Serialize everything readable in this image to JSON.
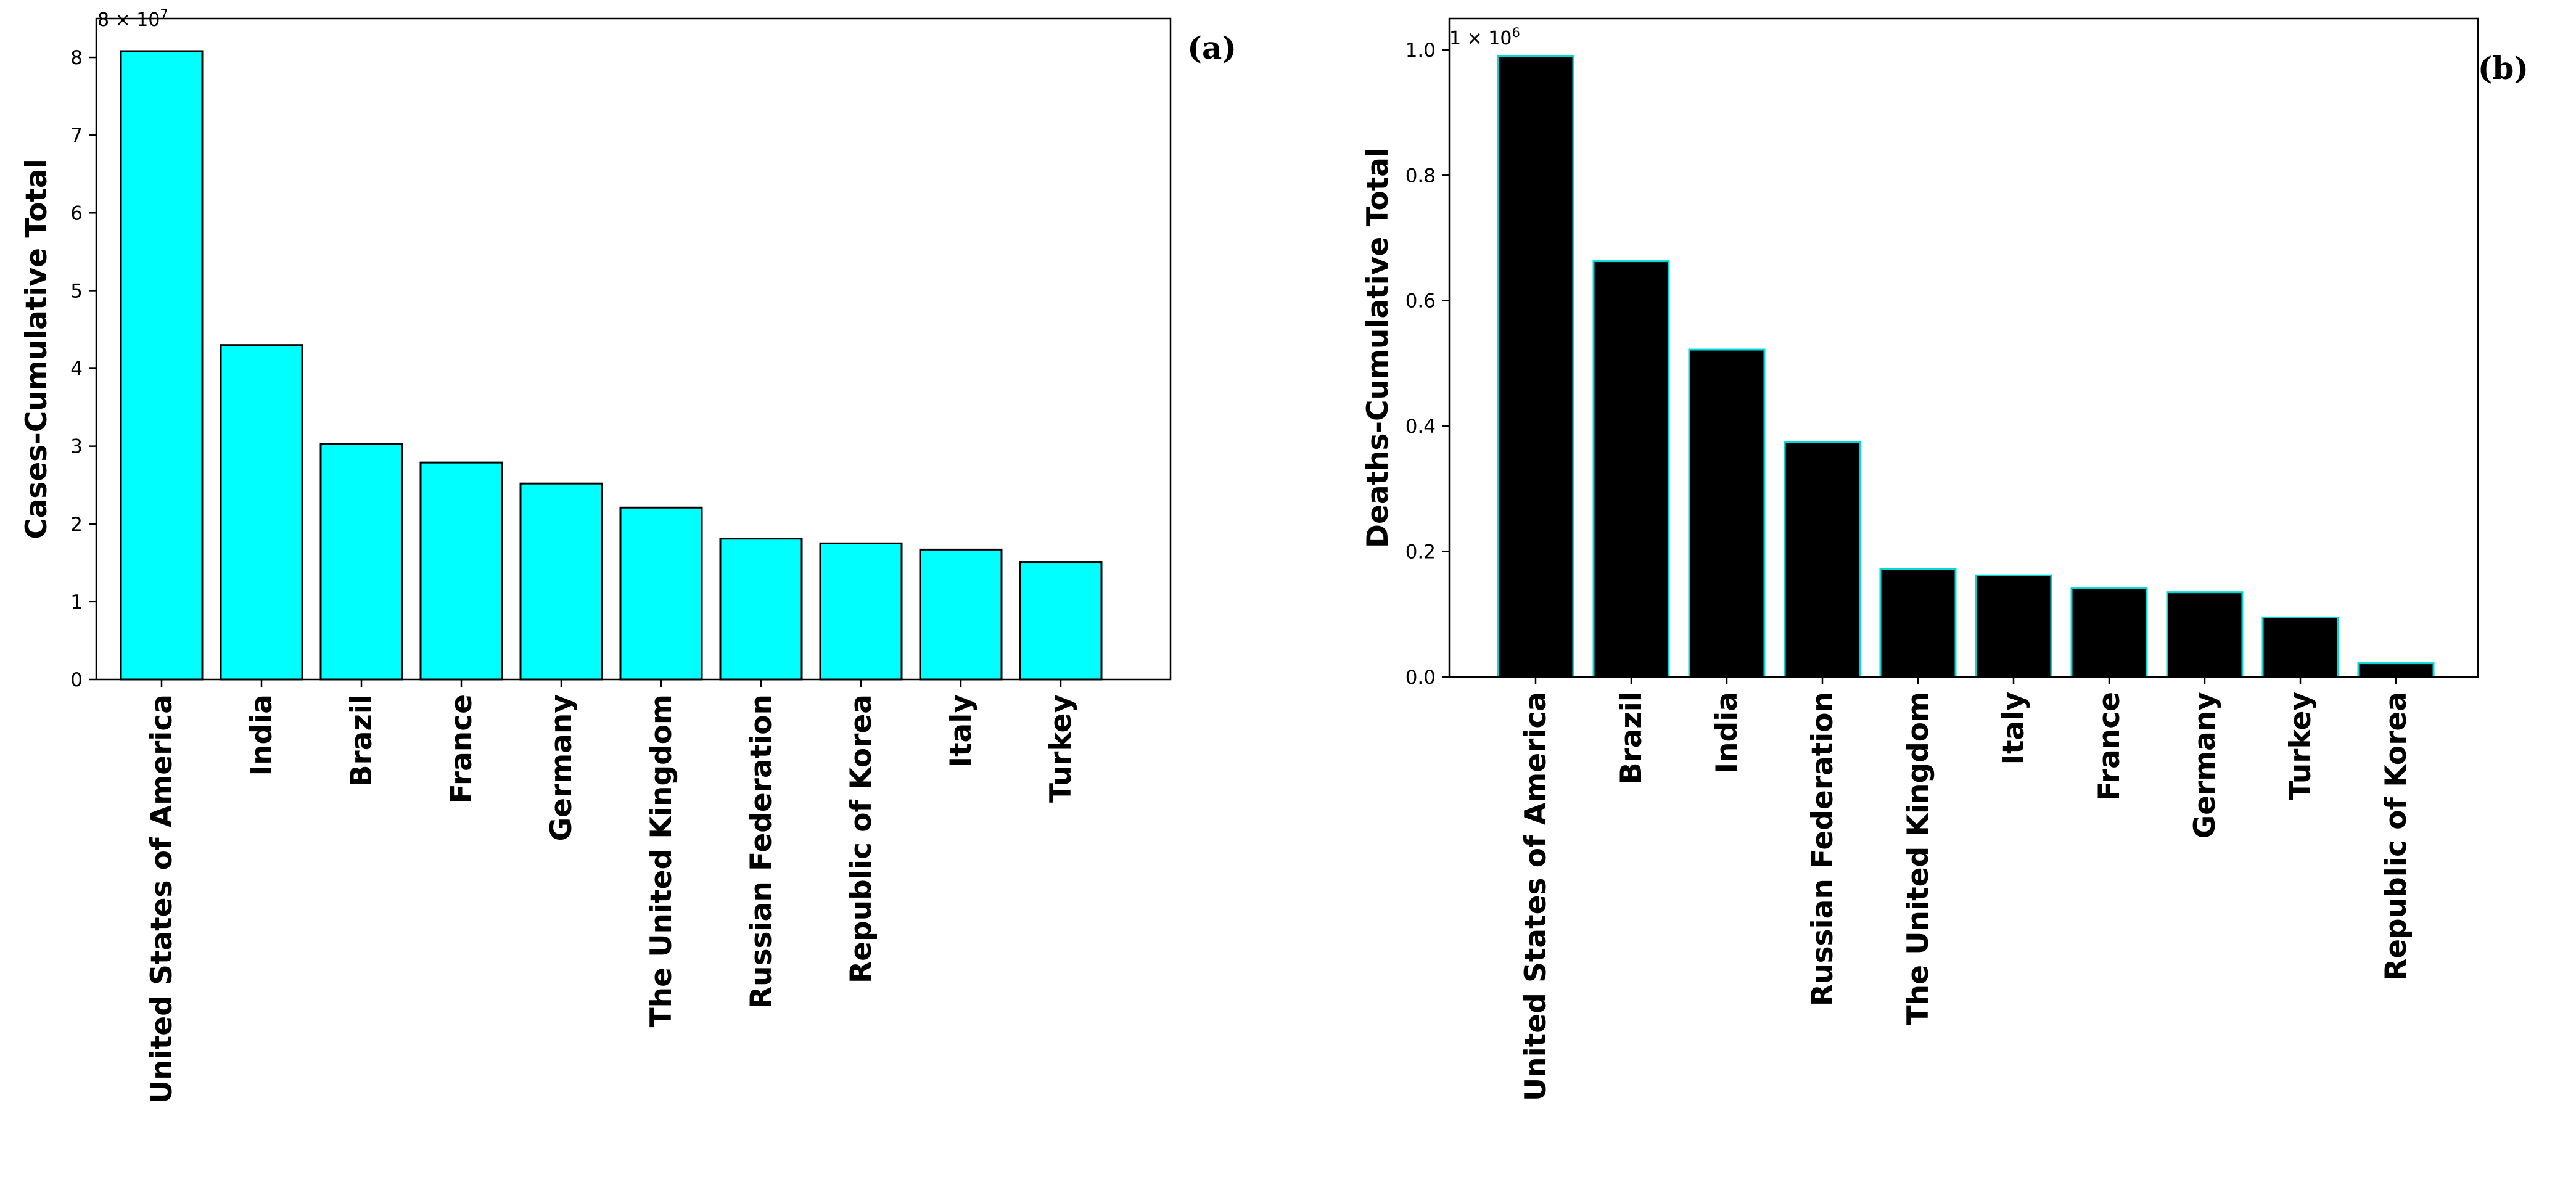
{
  "chart_data": [
    {
      "type": "bar",
      "panel_label": "(a)",
      "ylabel": "Cases-Cumulative Total",
      "xlabel": "",
      "scale_note": "8 × 10",
      "scale_exp": "7",
      "scale_factor": 10000000,
      "ylim": [
        0,
        8.5
      ],
      "yticks": [
        0,
        1,
        2,
        3,
        4,
        5,
        6,
        7,
        8
      ],
      "categories": [
        "United States of America",
        "India",
        "Brazil",
        "France",
        "Germany",
        "The United Kingdom",
        "Russian Federation",
        "Republic of Korea",
        "Italy",
        "Turkey"
      ],
      "values": [
        8.08,
        4.3,
        3.03,
        2.79,
        2.52,
        2.21,
        1.81,
        1.75,
        1.67,
        1.51
      ],
      "bar_color": "#00ffff",
      "edge_color": "#000000"
    },
    {
      "type": "bar",
      "panel_label": "(b)",
      "ylabel": "Deaths-Cumulative Total",
      "xlabel": "",
      "scale_note": "1 × 10",
      "scale_exp": "6",
      "scale_factor": 1000000,
      "ylim": [
        0,
        1.05
      ],
      "yticks": [
        0.0,
        0.2,
        0.4,
        0.6,
        0.8,
        1.0
      ],
      "categories": [
        "United States of America",
        "Brazil",
        "India",
        "Russian Federation",
        "The United Kingdom",
        "Italy",
        "France",
        "Germany",
        "Turkey",
        "Republic of Korea"
      ],
      "values": [
        0.99,
        0.663,
        0.522,
        0.375,
        0.172,
        0.162,
        0.142,
        0.135,
        0.095,
        0.022
      ],
      "bar_color": "#000000",
      "edge_color": "#00d8d8"
    }
  ]
}
